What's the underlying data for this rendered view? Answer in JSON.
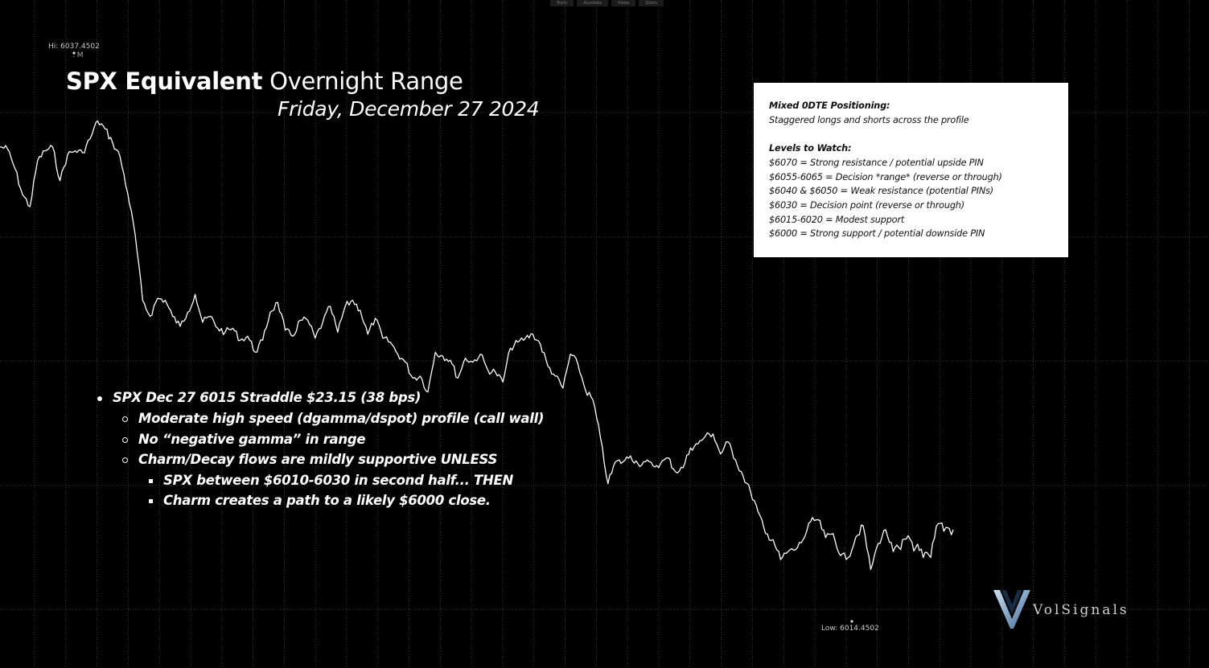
{
  "toolbar": {
    "items": [
      "Track",
      "Annotate",
      "Views",
      "Zoom"
    ]
  },
  "title": {
    "bold": "SPX Equivalent",
    "rest": " Overnight Range"
  },
  "subtitle": "Friday, December 27 2024",
  "hi_label": "Hi: 6037.4502",
  "hi_marker": ". M",
  "lo_label": "Low: 6014.4502",
  "infobox": {
    "heading1": "Mixed 0DTE Positioning:",
    "line1": "Staggered longs and shorts across the profile",
    "heading2": "Levels to Watch:",
    "levels": [
      "$6070 = Strong resistance / potential upside PIN",
      "$6055-6065 = Decision *range* (reverse or through)",
      "$6040 & $6050 = Weak resistance (potential PINs)",
      "$6030 = Decision point (reverse or through)",
      "$6015-6020 = Modest support",
      "$6000 = Strong support / potential downside PIN"
    ]
  },
  "bullets": [
    {
      "level": 1,
      "text": "SPX Dec 27 6015 Straddle $23.15 (38 bps)"
    },
    {
      "level": 2,
      "text": "Moderate high speed (dgamma/dspot) profile (call wall)"
    },
    {
      "level": 2,
      "text": "No “negative gamma” in range"
    },
    {
      "level": 2,
      "text": "Charm/Decay flows are mildly supportive UNLESS"
    },
    {
      "level": 3,
      "text": "SPX between $6010-6030 in second half... THEN"
    },
    {
      "level": 3,
      "text": "Charm creates a path to a likely $6000 close."
    }
  ],
  "logo": {
    "name": "v-logo-icon",
    "text": "VolSignals",
    "color": "#4a6f9a"
  },
  "colors": {
    "background": "#000000",
    "line": "#ffffff",
    "grid": "#3a3a3a"
  },
  "chart_data": {
    "type": "line",
    "title": "SPX Equivalent Overnight Range",
    "subtitle": "Friday, December 27 2024",
    "grid": true,
    "ylim": [
      6011.8,
      6040.3
    ],
    "series": [
      {
        "values": [
          6035.6,
          6035.5,
          6034.5,
          6033.2,
          6032.6,
          6034.9,
          6035.4,
          6035.6,
          6033.9,
          6035.2,
          6035.4,
          6035.3,
          6036.0,
          6036.9,
          6036.5,
          6035.8,
          6035.1,
          6033.3,
          6031.2,
          6027.9,
          6027.1,
          6028.0,
          6027.9,
          6027.1,
          6026.6,
          6027.3,
          6028.2,
          6026.8,
          6027.1,
          6026.5,
          6026.3,
          6026.5,
          6025.9,
          6026.1,
          6025.3,
          6025.9,
          6027.3,
          6027.8,
          6026.4,
          6026.1,
          6026.9,
          6026.9,
          6026.0,
          6026.8,
          6027.6,
          6026.3,
          6027.6,
          6027.9,
          6027.4,
          6026.2,
          6027.0,
          6026.0,
          6025.8,
          6025.2,
          6024.8,
          6024.0,
          6024.1,
          6023.3,
          6025.3,
          6025.1,
          6024.9,
          6024.0,
          6025.0,
          6024.8,
          6025.2,
          6024.4,
          6024.3,
          6023.8,
          6025.5,
          6025.8,
          6026.0,
          6026.2,
          6025.7,
          6024.6,
          6024.1,
          6023.5,
          6025.2,
          6024.7,
          6023.4,
          6022.9,
          6021.0,
          6018.7,
          6019.8,
          6019.8,
          6020.1,
          6019.7,
          6019.8,
          6019.6,
          6019.7,
          6020.0,
          6019.3,
          6019.5,
          6020.5,
          6020.7,
          6021.1,
          6021.2,
          6020.2,
          6020.8,
          6019.9,
          6019.1,
          6018.3,
          6017.3,
          6016.2,
          6015.9,
          6014.9,
          6015.3,
          6015.4,
          6015.9,
          6016.8,
          6016.9,
          6016.0,
          6016.2,
          6015.1,
          6015.0,
          6016.0,
          6016.6,
          6014.4,
          6015.7,
          6016.4,
          6015.3,
          6015.4,
          6016.1,
          6015.5,
          6015.0,
          6015.0,
          6016.7,
          6016.5,
          6016.4
        ]
      }
    ]
  }
}
